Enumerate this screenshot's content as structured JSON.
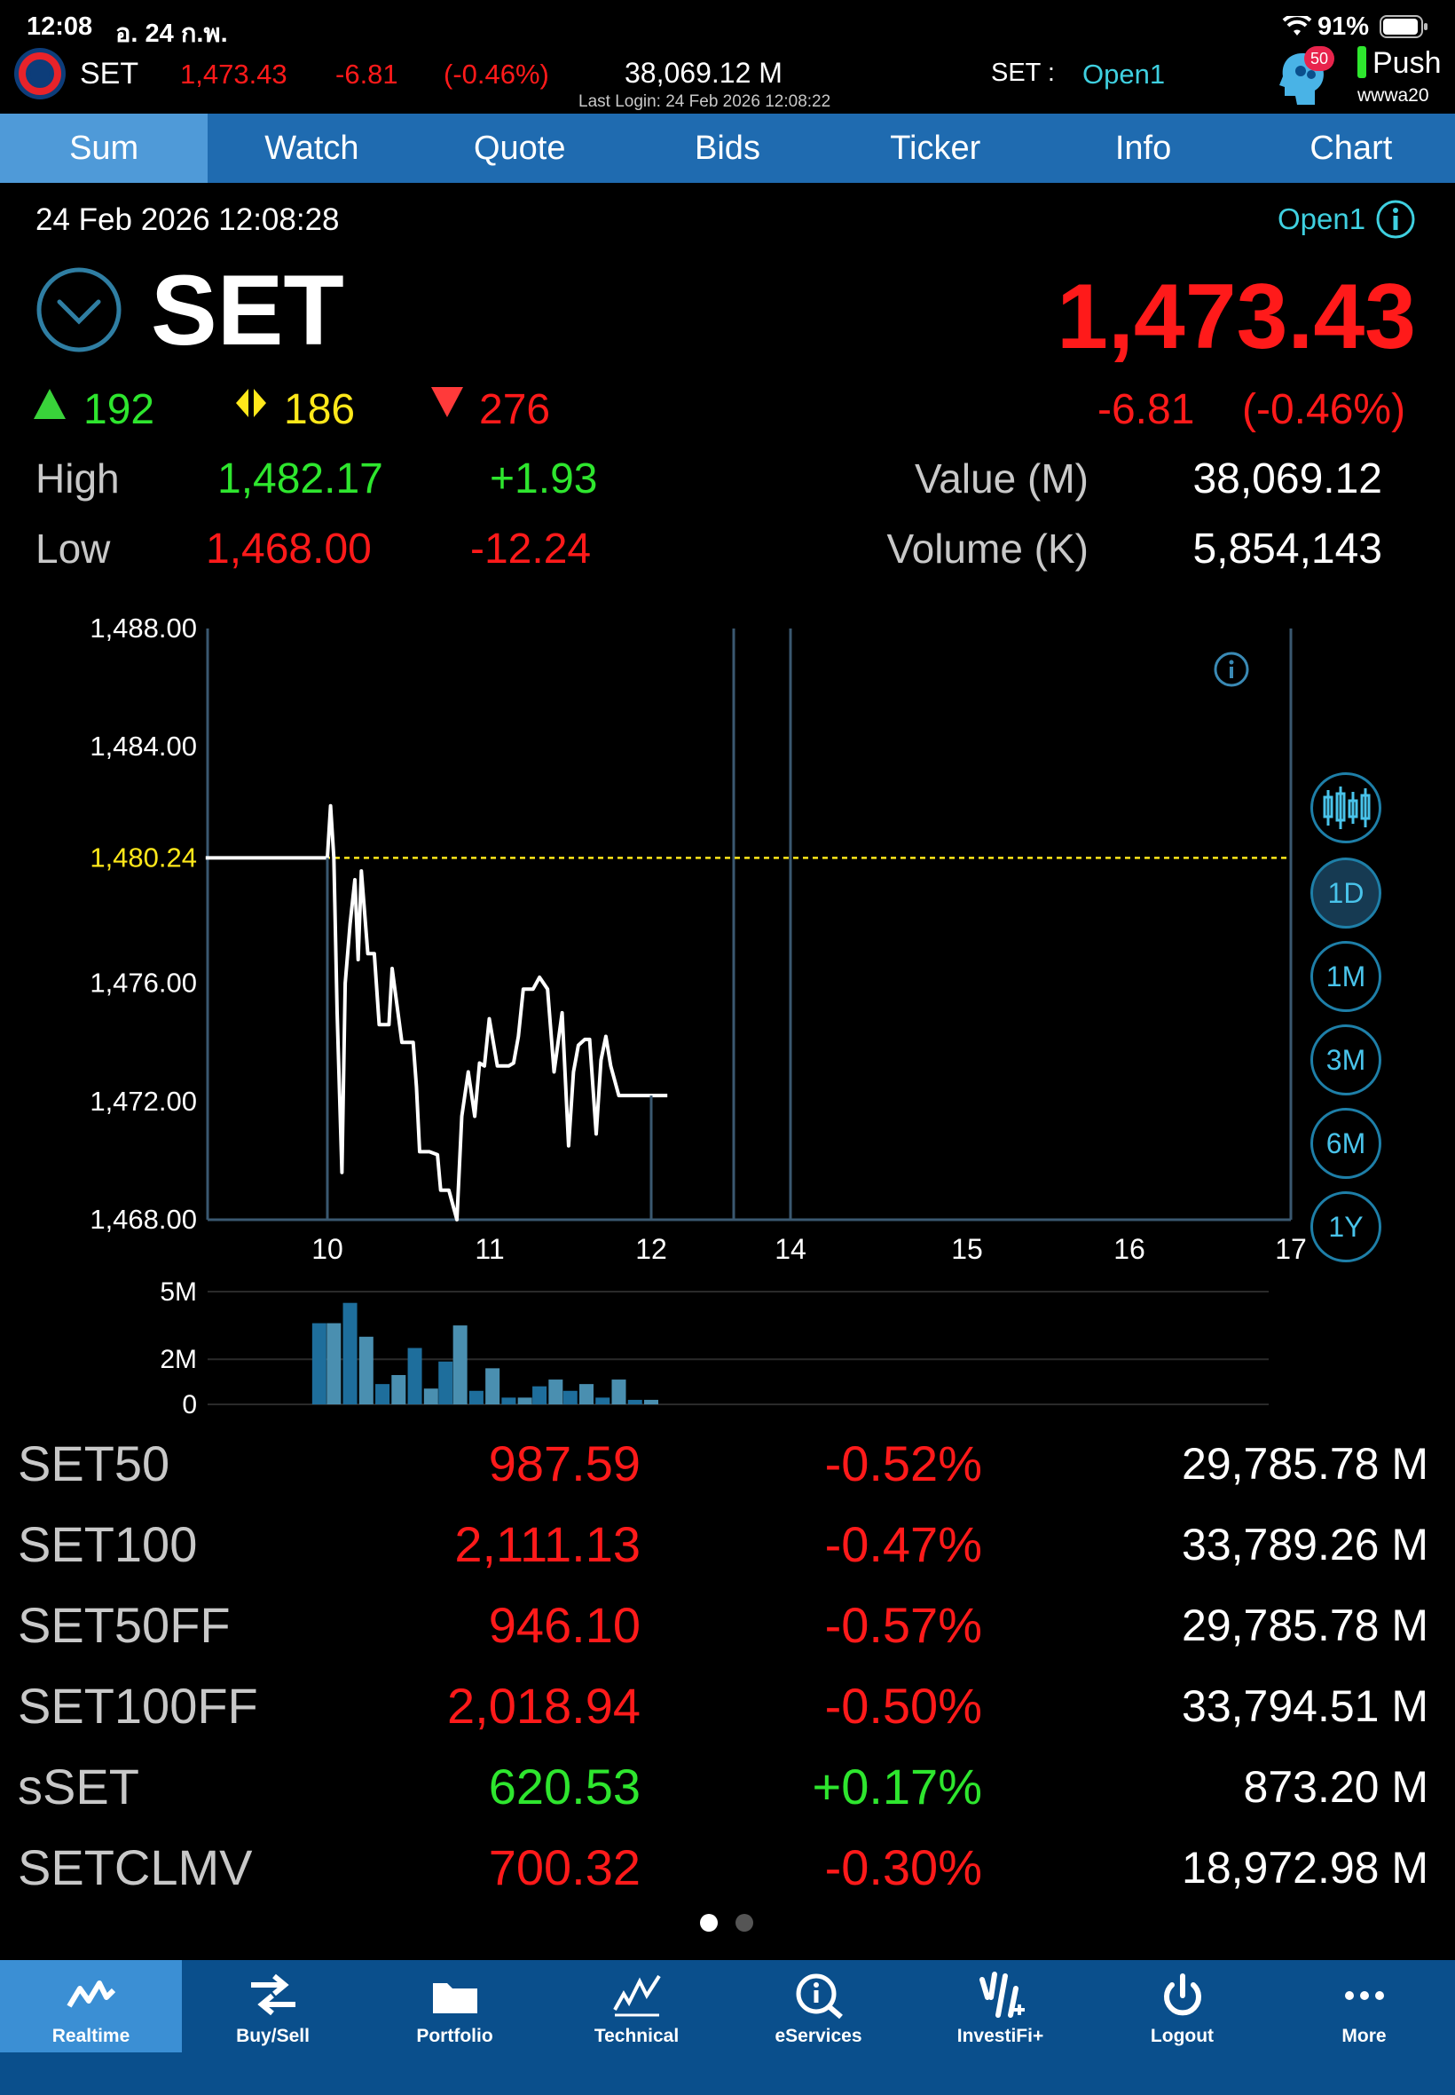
{
  "status_bar": {
    "time": "12:08",
    "date": "อ. 24 ก.พ.",
    "battery": "91%"
  },
  "header": {
    "market": "SET",
    "index_value": "1,473.43",
    "change": "-6.81",
    "change_pct": "(-0.46%)",
    "value": "38,069.12 M",
    "last_login": "Last Login: 24 Feb 2026 12:08:22",
    "session_label": "SET :",
    "session": "Open1",
    "badge_count": "50",
    "push_label": "Push",
    "user": "wwwa20"
  },
  "tabs": [
    "Sum",
    "Watch",
    "Quote",
    "Bids",
    "Ticker",
    "Info",
    "Chart"
  ],
  "summary": {
    "datetime": "24 Feb 2026 12:08:28",
    "session": "Open1",
    "name": "SET",
    "last": "1,473.43",
    "advances": "192",
    "unchanged": "186",
    "declines": "276",
    "change": "-6.81",
    "change_pct": "(-0.46%)",
    "high_label": "High",
    "high": "1,482.17",
    "high_change": "+1.93",
    "low_label": "Low",
    "low": "1,468.00",
    "low_change": "-12.24",
    "value_label": "Value (M)",
    "value": "38,069.12",
    "volume_label": "Volume (K)",
    "volume": "5,854,143"
  },
  "chart_data": {
    "type": "line",
    "y_ticks": [
      "1,488.00",
      "1,484.00",
      "1,476.00",
      "1,472.00",
      "1,468.00"
    ],
    "ylim": [
      1468,
      1488
    ],
    "prev_close": 1480.24,
    "prev_close_label": "1,480.24",
    "x_ticks": [
      "10",
      "11",
      "12",
      "14",
      "15",
      "16",
      "17"
    ],
    "x_tick_hours": [
      10,
      11,
      12,
      14,
      15,
      16,
      17
    ],
    "series": [
      {
        "x": [
          9.25,
          10.0,
          10.0,
          10.02,
          10.04,
          10.06,
          10.09,
          10.11,
          10.14,
          10.17,
          10.19,
          10.21,
          10.25,
          10.29,
          10.32,
          10.35,
          10.38,
          10.4,
          10.46,
          10.53,
          10.55,
          10.57,
          10.63,
          10.68,
          10.7,
          10.75,
          10.8,
          10.83,
          10.87,
          10.91,
          10.94,
          10.97,
          11.0,
          11.05,
          11.09,
          11.12,
          11.15,
          11.18,
          11.21,
          11.27,
          11.31,
          11.36,
          11.4,
          11.45,
          11.49,
          11.52,
          11.55,
          11.59,
          11.62,
          11.66,
          11.69,
          11.72,
          11.75,
          11.8,
          11.85,
          11.88,
          12.0,
          12.1
        ],
        "y": [
          1480.24,
          1480.24,
          1480.24,
          1482.0,
          1480.24,
          1475.0,
          1469.6,
          1476.0,
          1478.0,
          1479.5,
          1476.8,
          1479.8,
          1477.0,
          1477.0,
          1474.6,
          1474.6,
          1474.6,
          1476.5,
          1474.0,
          1474.0,
          1472.5,
          1470.3,
          1470.3,
          1470.2,
          1469.0,
          1469.0,
          1468.0,
          1471.5,
          1473.0,
          1471.5,
          1473.3,
          1473.2,
          1474.8,
          1473.2,
          1473.2,
          1473.2,
          1473.3,
          1474.2,
          1475.8,
          1475.8,
          1476.2,
          1475.8,
          1473.0,
          1475.0,
          1470.5,
          1473.0,
          1473.9,
          1474.1,
          1474.1,
          1470.9,
          1473.4,
          1474.2,
          1473.2,
          1472.2,
          1472.2,
          1472.2,
          1472.2,
          1472.2
        ]
      }
    ],
    "volume": {
      "y_ticks": [
        "5M",
        "2M",
        "0"
      ],
      "ylim": [
        0,
        5
      ],
      "bar_hours": [
        9.95,
        10.04,
        10.14,
        10.24,
        10.34,
        10.44,
        10.54,
        10.64,
        10.73,
        10.82,
        10.92,
        11.02,
        11.12,
        11.22,
        11.31,
        11.41,
        11.5,
        11.6,
        11.7,
        11.8,
        11.9,
        12.0
      ],
      "values": [
        3.6,
        3.6,
        4.5,
        3.0,
        0.9,
        1.3,
        2.5,
        0.7,
        1.9,
        3.5,
        0.6,
        1.6,
        0.3,
        0.3,
        0.8,
        1.1,
        0.6,
        0.9,
        0.3,
        1.1,
        0.2,
        0.2
      ]
    },
    "line_color": "#ffffff",
    "prev_close_color": "#ffe81a",
    "volume_color": "#1e6e9c"
  },
  "timeframes": [
    "1D",
    "1M",
    "3M",
    "6M",
    "1Y"
  ],
  "indices": [
    {
      "name": "SET50",
      "last": "987.59",
      "change_pct": "-0.52%",
      "value": "29,785.78 M",
      "color": "red"
    },
    {
      "name": "SET100",
      "last": "2,111.13",
      "change_pct": "-0.47%",
      "value": "33,789.26 M",
      "color": "red"
    },
    {
      "name": "SET50FF",
      "last": "946.10",
      "change_pct": "-0.57%",
      "value": "29,785.78 M",
      "color": "red"
    },
    {
      "name": "SET100FF",
      "last": "2,018.94",
      "change_pct": "-0.50%",
      "value": "33,794.51 M",
      "color": "red"
    },
    {
      "name": "sSET",
      "last": "620.53",
      "change_pct": "+0.17%",
      "value": "873.20 M",
      "color": "green"
    },
    {
      "name": "SETCLMV",
      "last": "700.32",
      "change_pct": "-0.30%",
      "value": "18,972.98 M",
      "color": "red"
    }
  ],
  "bottom_nav": [
    "Realtime",
    "Buy/Sell",
    "Portfolio",
    "Technical",
    "eServices",
    "InvestiFi+",
    "Logout",
    "More"
  ]
}
